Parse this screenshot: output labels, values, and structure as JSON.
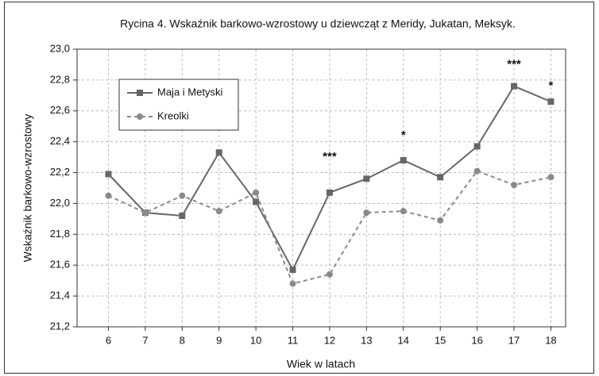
{
  "chart_data": {
    "type": "line",
    "title": "Rycina 4. Wskaźnik barkowo-wzrostowy u dziewcząt z Meridy, Jukatan, Meksyk.",
    "x_label": "Wiek w latach",
    "y_label": "Wskaźnik barkowo-wzrostowy",
    "x": [
      6,
      7,
      8,
      9,
      10,
      11,
      12,
      13,
      14,
      15,
      16,
      17,
      18
    ],
    "series": [
      {
        "name": "Maja i Metyski",
        "color": "#666666",
        "dash": false,
        "marker": "square",
        "values": [
          22.19,
          21.94,
          21.92,
          22.33,
          22.01,
          21.57,
          22.07,
          22.16,
          22.28,
          22.17,
          22.37,
          22.76,
          22.66
        ]
      },
      {
        "name": "Kreolki",
        "color": "#8a8a8a",
        "dash": true,
        "marker": "circle",
        "values": [
          22.05,
          21.94,
          22.05,
          21.95,
          22.07,
          21.48,
          21.54,
          21.94,
          21.95,
          21.89,
          22.21,
          22.12,
          22.17
        ]
      }
    ],
    "annotations": [
      {
        "text": "***",
        "x": 12,
        "y": 22.3
      },
      {
        "text": "*",
        "x": 14,
        "y": 22.44
      },
      {
        "text": "***",
        "x": 17,
        "y": 22.9
      },
      {
        "text": "*",
        "x": 18,
        "y": 22.76
      }
    ],
    "xlim": [
      5.15,
      18.4
    ],
    "ylim": [
      21.2,
      23.0
    ],
    "xticks": [
      6,
      7,
      8,
      9,
      10,
      11,
      12,
      13,
      14,
      15,
      16,
      17,
      18
    ],
    "yticks": [
      {
        "value": 21.2,
        "label": "21,2"
      },
      {
        "value": 21.4,
        "label": "21,4"
      },
      {
        "value": 21.6,
        "label": "21,6"
      },
      {
        "value": 21.8,
        "label": "21,8"
      },
      {
        "value": 22.0,
        "label": "22,0"
      },
      {
        "value": 22.2,
        "label": "22,2"
      },
      {
        "value": 22.4,
        "label": "22,4"
      },
      {
        "value": 22.6,
        "label": "22,6"
      },
      {
        "value": 22.8,
        "label": "22,8"
      },
      {
        "value": 23.0,
        "label": "23,0"
      }
    ],
    "grid": true,
    "legend": "upper left"
  }
}
